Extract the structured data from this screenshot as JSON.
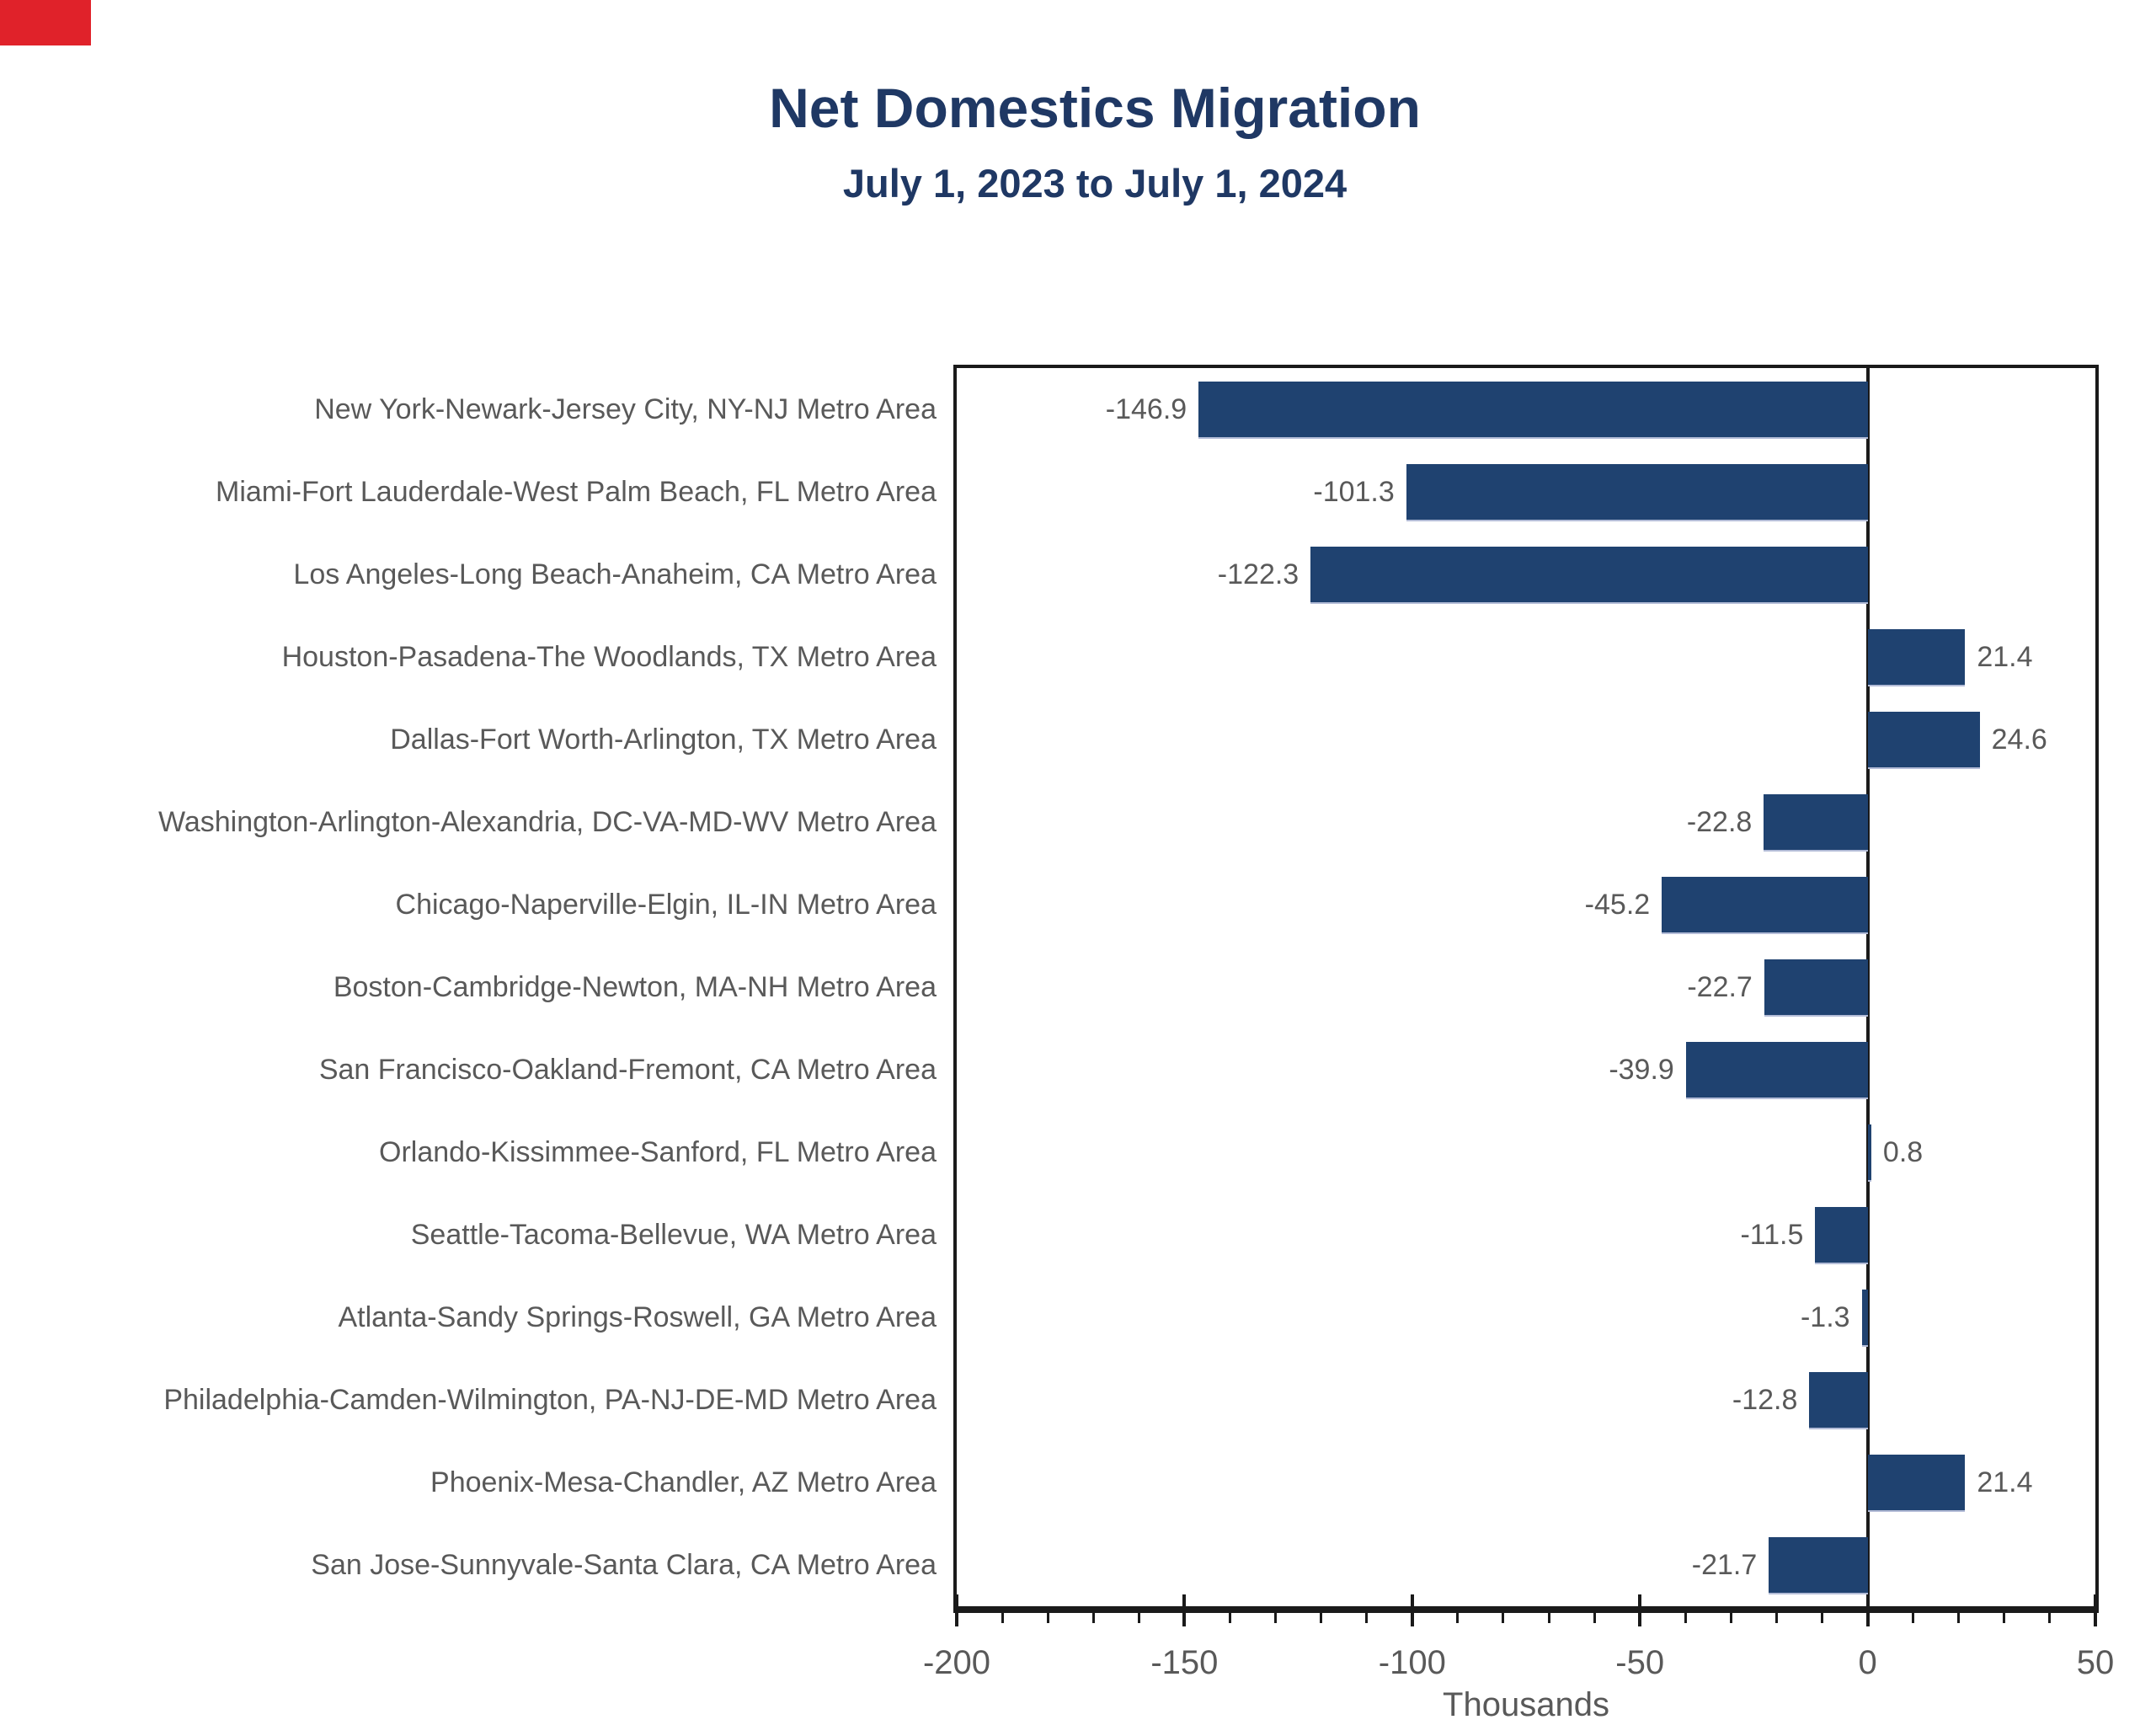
{
  "title": "Net Domestics Migration",
  "subtitle": "July 1, 2023 to July 1, 2024",
  "chart_data": {
    "type": "bar",
    "orientation": "horizontal",
    "title": "Net Domestics Migration",
    "subtitle": "July 1, 2023 to July 1, 2024",
    "categories": [
      "New York-Newark-Jersey City, NY-NJ Metro Area",
      "Miami-Fort Lauderdale-West Palm Beach, FL Metro Area",
      "Los Angeles-Long Beach-Anaheim, CA Metro Area",
      "Houston-Pasadena-The Woodlands, TX Metro Area",
      "Dallas-Fort Worth-Arlington, TX Metro Area",
      "Washington-Arlington-Alexandria, DC-VA-MD-WV Metro Area",
      "Chicago-Naperville-Elgin, IL-IN Metro Area",
      "Boston-Cambridge-Newton, MA-NH Metro Area",
      "San Francisco-Oakland-Fremont, CA Metro Area",
      "Orlando-Kissimmee-Sanford, FL Metro Area",
      "Seattle-Tacoma-Bellevue, WA Metro Area",
      "Atlanta-Sandy Springs-Roswell, GA Metro Area",
      "Philadelphia-Camden-Wilmington, PA-NJ-DE-MD Metro Area",
      "Phoenix-Mesa-Chandler, AZ Metro Area",
      "San Jose-Sunnyvale-Santa Clara, CA Metro Area"
    ],
    "values": [
      -146.9,
      -101.3,
      -122.3,
      21.4,
      24.6,
      -22.8,
      -45.2,
      -22.7,
      -39.9,
      0.8,
      -11.5,
      -1.3,
      -12.8,
      21.4,
      -21.7
    ],
    "value_labels": [
      "-146.9",
      "-101.3",
      "-122.3",
      "21.4",
      "24.6",
      "-22.8",
      "-45.2",
      "-22.7",
      "-39.9",
      "0.8",
      "-11.5",
      "-1.3",
      "-12.8",
      "21.4",
      "-21.7"
    ],
    "xlabel": "Thousands",
    "xlim": [
      -200,
      50
    ],
    "x_major_ticks": [
      -200,
      -150,
      -100,
      -50,
      0,
      50
    ],
    "x_tick_labels": [
      "-200",
      "-150",
      "-100",
      "-50",
      "0",
      "50"
    ],
    "x_minor_tick_step": 10,
    "grid": false,
    "legend": "none"
  },
  "colors": {
    "bar": "#1f4270",
    "bar_bottom_edge": "#b3bcd7",
    "title_text": "#1f3864",
    "axis_text": "#595959",
    "frame_line": "#1a1a1a",
    "background": "#ffffff",
    "corner_marker": "#e0222a"
  }
}
